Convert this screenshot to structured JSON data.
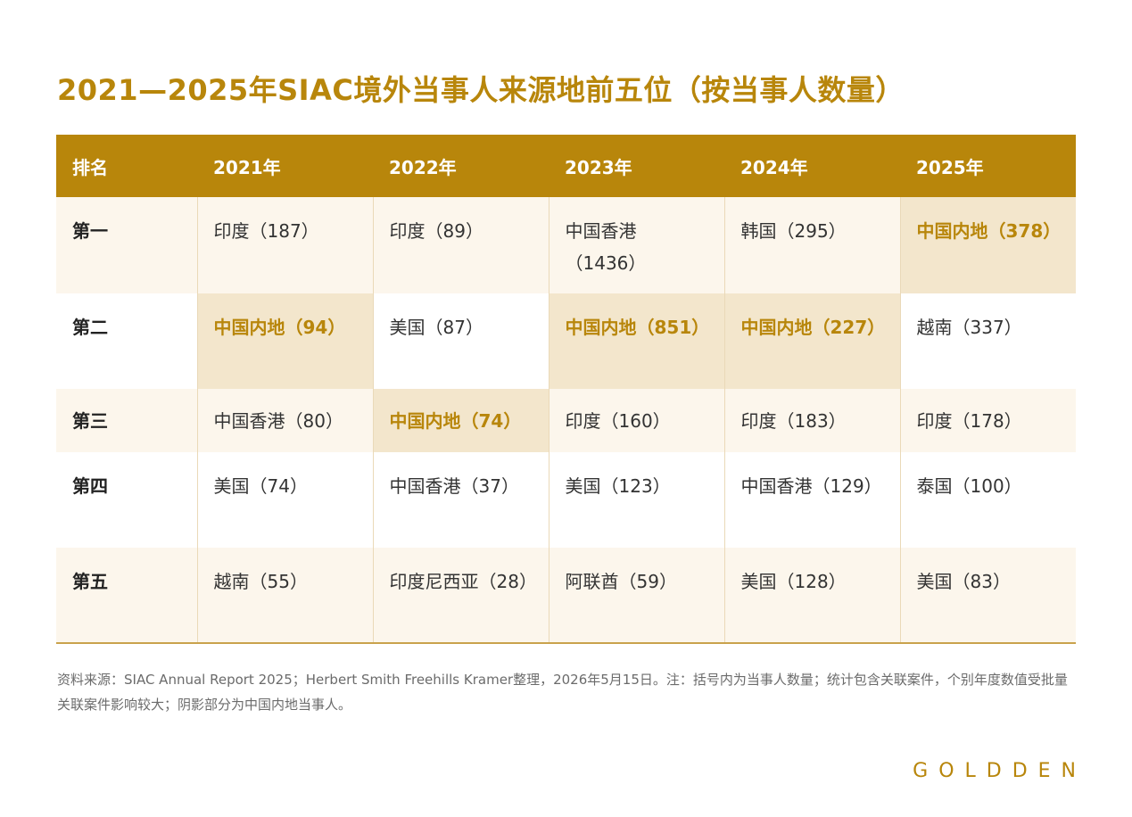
{
  "title": "2021—2025年SIAC境外当事人来源地前五位（按当事人数量）",
  "table": {
    "headers": [
      "排名",
      "2021年",
      "2022年",
      "2023年",
      "2024年",
      "2025年"
    ],
    "rows": [
      {
        "rank": "第一",
        "cells": [
          "印度（187）",
          "印度（89）",
          "中国香港（1436）",
          "韩国（295）",
          "中国内地（378）"
        ]
      },
      {
        "rank": "第二",
        "cells": [
          "中国内地（94）",
          "美国（87）",
          "中国内地（851）",
          "中国内地（227）",
          "越南（337）"
        ]
      },
      {
        "rank": "第三",
        "cells": [
          "中国香港（80）",
          "中国内地（74）",
          "印度（160）",
          "印度（183）",
          "印度（178）"
        ]
      },
      {
        "rank": "第四",
        "cells": [
          "美国（74）",
          "中国香港（37）",
          "美国（123）",
          "中国香港（129）",
          "泰国（100）"
        ]
      },
      {
        "rank": "第五",
        "cells": [
          "越南（55）",
          "印度尼西亚（28）",
          "阿联酋（59）",
          "美国（128）",
          "美国（83）"
        ]
      }
    ]
  },
  "footnote": "资料来源：SIAC Annual Report 2025；Herbert Smith Freehills Kramer整理，2026年5月15日。注：括号内为当事人数量；统计包含关联案件，个别年度数值受批量关联案件影响较大；阴影部分为中国内地当事人。",
  "logo": "GOLDDEN",
  "colors": {
    "accent": "#b8860b",
    "highlight_bg": "#f3e6cc",
    "row_tint": "#fcf6ec"
  }
}
